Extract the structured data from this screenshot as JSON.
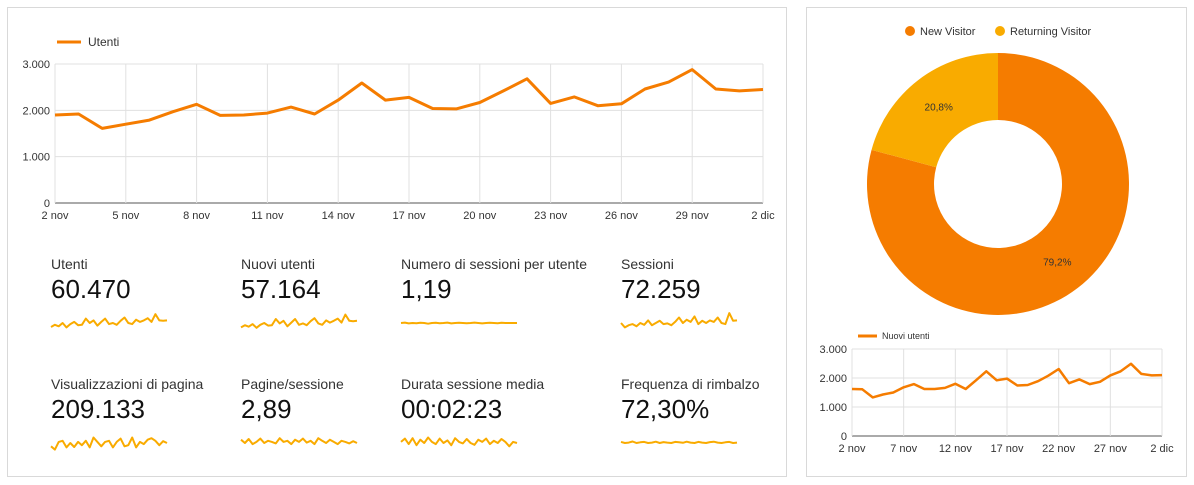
{
  "main_chart": {
    "legend": "Utenti",
    "color": "#f57c00",
    "ytick_labels": [
      "0",
      "1.000",
      "2.000",
      "3.000"
    ],
    "xtick_labels": [
      "2 nov",
      "5 nov",
      "8 nov",
      "11 nov",
      "14 nov",
      "17 nov",
      "20 nov",
      "23 nov",
      "26 nov",
      "29 nov",
      "2 dic"
    ]
  },
  "metrics": [
    {
      "label": "Utenti",
      "value": "60.470"
    },
    {
      "label": "Nuovi utenti",
      "value": "57.164"
    },
    {
      "label": "Numero di sessioni per utente",
      "value": "1,19"
    },
    {
      "label": "Sessioni",
      "value": "72.259"
    },
    {
      "label": "Visualizzazioni di pagina",
      "value": "209.133"
    },
    {
      "label": "Pagine/sessione",
      "value": "2,89"
    },
    {
      "label": "Durata sessione media",
      "value": "00:02:23"
    },
    {
      "label": "Frequenza di rimbalzo",
      "value": "72,30%"
    }
  ],
  "sparkline_color": "#f9ab00",
  "donut": {
    "legend": [
      {
        "label": "New Visitor",
        "color": "#f57c00"
      },
      {
        "label": "Returning Visitor",
        "color": "#f9ab00"
      }
    ],
    "slice_labels": [
      "79,2%",
      "20,8%"
    ]
  },
  "small_chart": {
    "legend": "Nuovi utenti",
    "color": "#f57c00",
    "ytick_labels": [
      "0",
      "1.000",
      "2.000",
      "3.000"
    ],
    "xtick_labels": [
      "2 nov",
      "7 nov",
      "12 nov",
      "17 nov",
      "22 nov",
      "27 nov",
      "2 dic"
    ]
  },
  "chart_data": [
    {
      "type": "line",
      "series": [
        {
          "name": "Utenti",
          "values": [
            1900,
            1920,
            1610,
            1700,
            1790,
            1970,
            2130,
            1890,
            1900,
            1940,
            2070,
            1920,
            2220,
            2590,
            2220,
            2280,
            2040,
            2030,
            2170,
            2420,
            2680,
            2150,
            2290,
            2100,
            2140,
            2460,
            2610,
            2880,
            2460,
            2420,
            2450
          ]
        }
      ],
      "x_start_label": "2 nov",
      "x_end_label": "2 dic",
      "xtick_labels": [
        "2 nov",
        "5 nov",
        "8 nov",
        "11 nov",
        "14 nov",
        "17 nov",
        "20 nov",
        "23 nov",
        "26 nov",
        "29 nov",
        "2 dic"
      ],
      "ylim": [
        0,
        3000
      ],
      "ytick_values": [
        0,
        1000,
        2000,
        3000
      ],
      "grid": true,
      "legend_position": "top-left"
    },
    {
      "type": "pie",
      "donut": true,
      "labels": [
        "New Visitor",
        "Returning Visitor"
      ],
      "values": [
        79.2,
        20.8
      ],
      "legend_position": "top"
    },
    {
      "type": "line",
      "series": [
        {
          "name": "Nuovi utenti",
          "values": [
            1620,
            1610,
            1330,
            1430,
            1500,
            1680,
            1790,
            1620,
            1620,
            1660,
            1800,
            1620,
            1920,
            2230,
            1920,
            1980,
            1740,
            1760,
            1890,
            2080,
            2310,
            1820,
            1950,
            1790,
            1870,
            2090,
            2230,
            2490,
            2140,
            2090,
            2100
          ]
        }
      ],
      "xtick_labels": [
        "2 nov",
        "7 nov",
        "12 nov",
        "17 nov",
        "22 nov",
        "27 nov",
        "2 dic"
      ],
      "ylim": [
        0,
        3000
      ],
      "ytick_values": [
        0,
        1000,
        2000,
        3000
      ],
      "grid": true,
      "legend_position": "top-left"
    },
    {
      "type": "line",
      "sparklines": [
        {
          "metric": "Utenti",
          "values": [
            0.32,
            0.42,
            0.35,
            0.5,
            0.3,
            0.45,
            0.55,
            0.4,
            0.42,
            0.7,
            0.5,
            0.62,
            0.38,
            0.55,
            0.7,
            0.45,
            0.5,
            0.42,
            0.6,
            0.75,
            0.5,
            0.45,
            0.65,
            0.55,
            0.62,
            0.72,
            0.55,
            0.9,
            0.62,
            0.6,
            0.62
          ]
        },
        {
          "metric": "Nuovi utenti",
          "values": [
            0.3,
            0.4,
            0.33,
            0.45,
            0.28,
            0.42,
            0.5,
            0.38,
            0.4,
            0.68,
            0.48,
            0.6,
            0.35,
            0.52,
            0.68,
            0.42,
            0.48,
            0.4,
            0.58,
            0.72,
            0.48,
            0.42,
            0.62,
            0.52,
            0.6,
            0.7,
            0.52,
            0.88,
            0.6,
            0.58,
            0.6
          ]
        },
        {
          "metric": "Numero di sessioni per utente",
          "values": [
            0.5,
            0.52,
            0.48,
            0.5,
            0.49,
            0.51,
            0.5,
            0.47,
            0.5,
            0.51,
            0.49,
            0.5,
            0.52,
            0.48,
            0.5,
            0.51,
            0.5,
            0.49,
            0.5,
            0.52,
            0.5,
            0.48,
            0.5,
            0.51,
            0.5,
            0.49,
            0.51,
            0.5,
            0.5,
            0.5,
            0.5
          ]
        },
        {
          "metric": "Sessioni",
          "values": [
            0.5,
            0.3,
            0.4,
            0.45,
            0.35,
            0.5,
            0.42,
            0.62,
            0.4,
            0.5,
            0.6,
            0.45,
            0.48,
            0.4,
            0.55,
            0.75,
            0.5,
            0.65,
            0.55,
            0.8,
            0.45,
            0.6,
            0.5,
            0.62,
            0.55,
            0.75,
            0.5,
            0.45,
            0.95,
            0.6,
            0.62
          ]
        },
        {
          "metric": "Visualizzazioni di pagina",
          "values": [
            0.35,
            0.2,
            0.55,
            0.6,
            0.3,
            0.5,
            0.32,
            0.55,
            0.4,
            0.6,
            0.3,
            0.75,
            0.55,
            0.35,
            0.55,
            0.6,
            0.3,
            0.55,
            0.7,
            0.35,
            0.4,
            0.75,
            0.3,
            0.55,
            0.45,
            0.65,
            0.72,
            0.6,
            0.4,
            0.58,
            0.5
          ]
        },
        {
          "metric": "Pagine/sessione",
          "values": [
            0.65,
            0.5,
            0.68,
            0.45,
            0.55,
            0.7,
            0.5,
            0.6,
            0.55,
            0.48,
            0.72,
            0.55,
            0.6,
            0.45,
            0.65,
            0.55,
            0.7,
            0.52,
            0.6,
            0.45,
            0.72,
            0.6,
            0.5,
            0.65,
            0.55,
            0.45,
            0.6,
            0.55,
            0.48,
            0.58,
            0.5
          ]
        },
        {
          "metric": "Durata sessione media",
          "values": [
            0.55,
            0.7,
            0.45,
            0.72,
            0.4,
            0.65,
            0.5,
            0.75,
            0.55,
            0.45,
            0.7,
            0.5,
            0.62,
            0.4,
            0.72,
            0.55,
            0.48,
            0.68,
            0.5,
            0.42,
            0.65,
            0.55,
            0.7,
            0.45,
            0.6,
            0.5,
            0.68,
            0.55,
            0.35,
            0.55,
            0.5
          ]
        },
        {
          "metric": "Frequenza di rimbalzo",
          "values": [
            0.55,
            0.5,
            0.52,
            0.57,
            0.5,
            0.53,
            0.55,
            0.5,
            0.52,
            0.56,
            0.5,
            0.54,
            0.52,
            0.5,
            0.55,
            0.53,
            0.51,
            0.56,
            0.52,
            0.5,
            0.55,
            0.52,
            0.5,
            0.54,
            0.56,
            0.52,
            0.5,
            0.53,
            0.55,
            0.5,
            0.52
          ]
        }
      ]
    }
  ]
}
